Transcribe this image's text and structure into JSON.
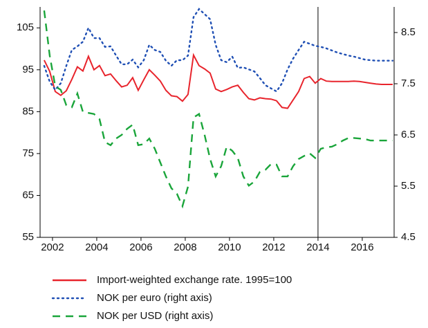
{
  "chart_data": {
    "type": "line",
    "x": [
      2001.625,
      2001.875,
      2002.125,
      2002.375,
      2002.625,
      2002.875,
      2003.125,
      2003.375,
      2003.625,
      2003.875,
      2004.125,
      2004.375,
      2004.625,
      2004.875,
      2005.125,
      2005.375,
      2005.625,
      2005.875,
      2006.125,
      2006.375,
      2006.625,
      2006.875,
      2007.125,
      2007.375,
      2007.625,
      2007.875,
      2008.125,
      2008.375,
      2008.625,
      2008.875,
      2009.125,
      2009.375,
      2009.625,
      2009.875,
      2010.125,
      2010.375,
      2010.625,
      2010.875,
      2011.125,
      2011.375,
      2011.625,
      2011.875,
      2012.125,
      2012.375,
      2012.625,
      2012.875,
      2013.125,
      2013.375,
      2013.625,
      2013.875,
      2014.125,
      2014.375,
      2014.625,
      2014.875,
      2015.125,
      2015.375,
      2015.625,
      2015.875,
      2016.125,
      2016.375,
      2016.625,
      2016.875,
      2017.125,
      2017.375
    ],
    "series": [
      {
        "name": "Import-weighted exchange rate. 1995=100",
        "color": "#e8242c",
        "dash": "solid",
        "axis": "y",
        "values": [
          97.3,
          94.6,
          89.8,
          88.9,
          90,
          92.7,
          95.7,
          94.7,
          98.2,
          95,
          96,
          93.6,
          94,
          92.4,
          90.9,
          91.3,
          93.1,
          90.1,
          92.6,
          95,
          93.7,
          92.3,
          90.1,
          88.8,
          88.6,
          87.5,
          89.1,
          98.5,
          96,
          95.2,
          94.2,
          90.4,
          89.8,
          90.3,
          90.9,
          91.3,
          89.6,
          88.1,
          87.8,
          88.3,
          88.1,
          88,
          87.6,
          86,
          85.8,
          87.8,
          89.8,
          92.9,
          93.4,
          91.8,
          92.9,
          92.3,
          92.2,
          92.2,
          92.2,
          92.2,
          92.3,
          92.2,
          92.0,
          91.8,
          91.6,
          91.5,
          91.5,
          91.5
        ]
      },
      {
        "name": "NOK per euro (right axis)",
        "color": "#1f4fb4",
        "dash": "dotted",
        "axis": "y2",
        "values": [
          7.85,
          7.54,
          7.38,
          7.51,
          7.85,
          8.16,
          8.23,
          8.32,
          8.59,
          8.39,
          8.39,
          8.22,
          8.23,
          8.05,
          7.88,
          7.88,
          7.97,
          7.82,
          7.96,
          8.26,
          8.16,
          8.12,
          7.95,
          7.85,
          7.96,
          7.96,
          8.05,
          8.8,
          8.96,
          8.86,
          8.76,
          8.26,
          7.96,
          7.92,
          8.03,
          7.81,
          7.82,
          7.78,
          7.74,
          7.61,
          7.47,
          7.41,
          7.35,
          7.51,
          7.78,
          7.99,
          8.16,
          8.32,
          8.28,
          8.24,
          8.22,
          8.19,
          8.15,
          8.11,
          8.08,
          8.05,
          8.03,
          8.0,
          7.97,
          7.96,
          7.95,
          7.95,
          7.95,
          7.95
        ]
      },
      {
        "name": "NOK per USD (right axis)",
        "color": "#1aa53a",
        "dash": "dashed",
        "axis": "y2",
        "values": [
          8.93,
          8.05,
          7.45,
          7.38,
          7.08,
          7.04,
          7.31,
          6.95,
          6.93,
          6.91,
          6.81,
          6.36,
          6.3,
          6.43,
          6.5,
          6.62,
          6.7,
          6.3,
          6.32,
          6.43,
          6.23,
          5.96,
          5.69,
          5.46,
          5.35,
          5.11,
          5.49,
          6.84,
          6.91,
          6.5,
          6.03,
          5.69,
          5.89,
          6.27,
          6.19,
          6.05,
          5.69,
          5.51,
          5.59,
          5.78,
          5.82,
          5.93,
          5.92,
          5.69,
          5.69,
          5.89,
          6.03,
          6.09,
          6.14,
          6.05,
          6.23,
          6.26,
          6.27,
          6.32,
          6.39,
          6.44,
          6.44,
          6.43,
          6.42,
          6.39,
          6.39,
          6.39,
          6.39,
          6.39
        ]
      }
    ],
    "xlim": [
      2001.44,
      2017.44
    ],
    "xticks": [
      2002,
      2004,
      2006,
      2008,
      2010,
      2012,
      2014,
      2016
    ],
    "ylim": [
      55,
      110
    ],
    "yticks": [
      55,
      65,
      75,
      85,
      95,
      105
    ],
    "y2lim": [
      4.5,
      9.0
    ],
    "y2ticks": [
      4.5,
      5.5,
      6.5,
      7.5,
      8.5
    ],
    "vline": 2014,
    "legend": "bottom"
  }
}
